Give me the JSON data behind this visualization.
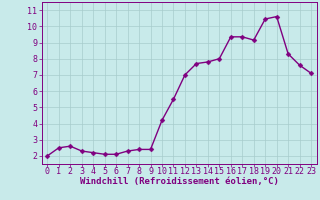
{
  "x": [
    0,
    1,
    2,
    3,
    4,
    5,
    6,
    7,
    8,
    9,
    10,
    11,
    12,
    13,
    14,
    15,
    16,
    17,
    18,
    19,
    20,
    21,
    22,
    23
  ],
  "y": [
    2.0,
    2.5,
    2.6,
    2.3,
    2.2,
    2.1,
    2.1,
    2.3,
    2.4,
    2.4,
    4.2,
    5.5,
    7.0,
    7.7,
    7.8,
    8.0,
    9.35,
    9.35,
    9.15,
    10.45,
    10.6,
    8.3,
    7.6,
    7.1
  ],
  "line_color": "#800080",
  "marker_color": "#800080",
  "bg_color": "#c8eaea",
  "grid_color": "#a8cccc",
  "xlabel": "Windchill (Refroidissement éolien,°C)",
  "ylabel": "",
  "xlim": [
    -0.5,
    23.5
  ],
  "ylim": [
    1.5,
    11.5
  ],
  "yticks": [
    2,
    3,
    4,
    5,
    6,
    7,
    8,
    9,
    10,
    11
  ],
  "xticks": [
    0,
    1,
    2,
    3,
    4,
    5,
    6,
    7,
    8,
    9,
    10,
    11,
    12,
    13,
    14,
    15,
    16,
    17,
    18,
    19,
    20,
    21,
    22,
    23
  ],
  "font_color": "#800080",
  "xlabel_fontsize": 6.5,
  "tick_fontsize": 6.0,
  "linewidth": 1.0,
  "markersize": 2.5
}
